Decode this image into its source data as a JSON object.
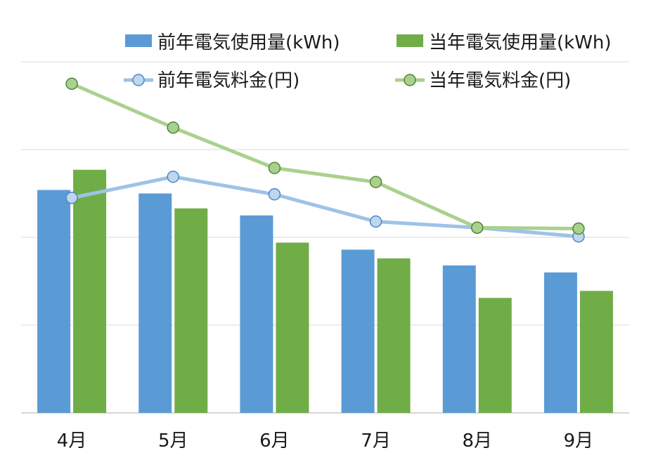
{
  "chart_data": {
    "type": "bar",
    "categories": [
      "4月",
      "5月",
      "6月",
      "7月",
      "8月",
      "9月"
    ],
    "bar_series": [
      {
        "name": "前年電気使用量(kWh)",
        "color": "#5b9bd5",
        "values": [
          254,
          250,
          225,
          186,
          168,
          160
        ]
      },
      {
        "name": "当年電気使用量(kWh)",
        "color": "#70ad47",
        "values": [
          277,
          233,
          194,
          176,
          131,
          139
        ]
      }
    ],
    "line_series": [
      {
        "name": "前年電気料金(円)",
        "color": "#9dc3e6",
        "marker_fill": "#bdd7ee",
        "marker_stroke": "#4a86c5",
        "values": [
          245,
          269,
          249,
          218,
          211,
          201
        ]
      },
      {
        "name": "当年電気料金(円)",
        "color": "#a9d18e",
        "marker_fill": "#a9d18e",
        "marker_stroke": "#548235",
        "values": [
          375,
          325,
          279,
          263,
          211,
          210
        ]
      }
    ],
    "ylim": [
      0,
      400
    ],
    "grid": true,
    "legend": "top",
    "y_ticks_visible": false
  }
}
